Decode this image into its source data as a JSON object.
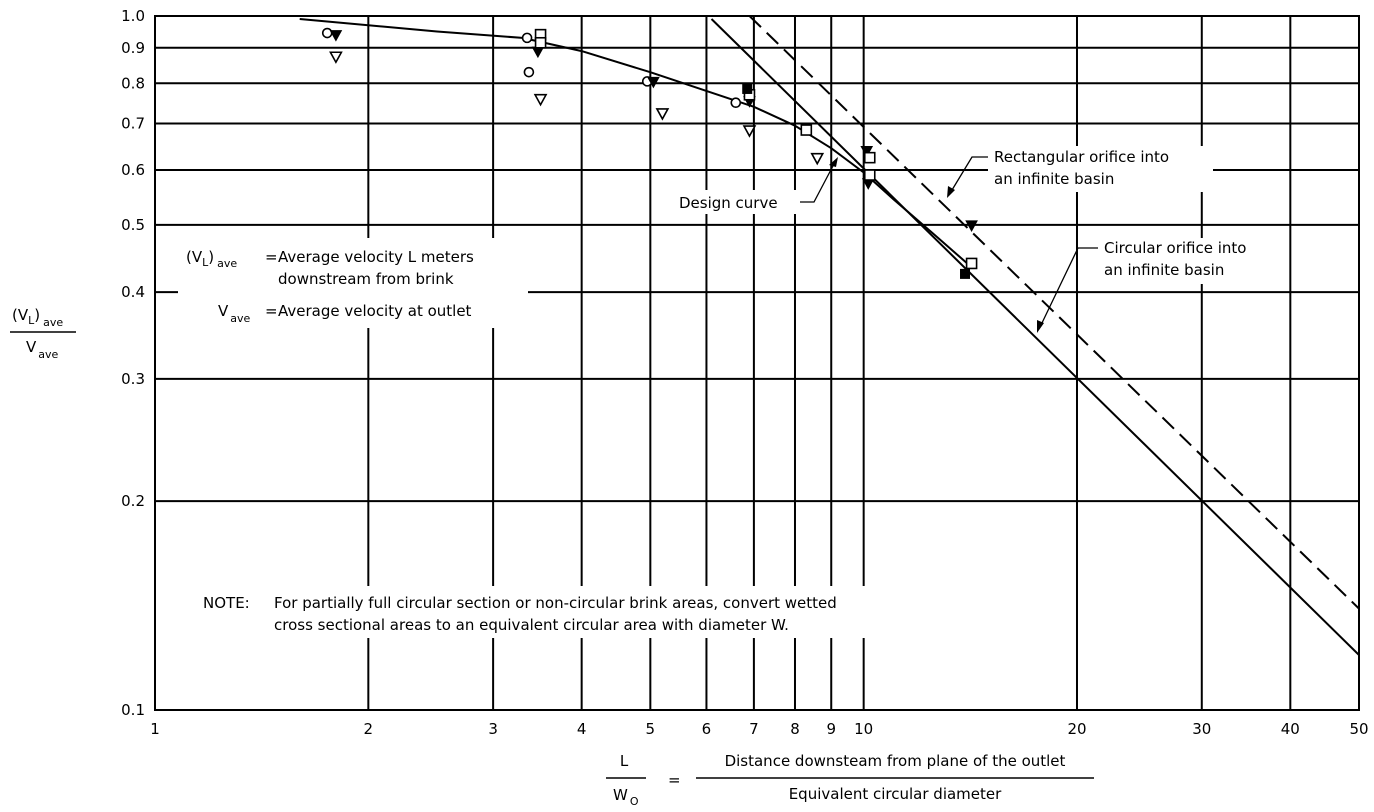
{
  "chart_data": {
    "type": "scatter",
    "xscale": "log",
    "yscale": "log",
    "xlim": [
      1,
      50
    ],
    "ylim": [
      0.1,
      1.0
    ],
    "grid": true,
    "x_ticks": [
      1,
      2,
      3,
      4,
      5,
      6,
      7,
      8,
      9,
      10,
      20,
      30,
      40,
      50
    ],
    "y_ticks": [
      0.1,
      0.2,
      0.3,
      0.4,
      0.5,
      0.6,
      0.7,
      0.8,
      0.9,
      1.0
    ],
    "y_ticks_labels": [
      "0.1",
      "0.2",
      "0.3",
      "0.4",
      "0.5",
      "0.6",
      "0.7",
      "0.8",
      "0.9",
      "1.0"
    ],
    "ylabel": {
      "num_main": "(V",
      "num_sub_L": "L",
      "num_close": ")",
      "num_sub": "ave",
      "den_main": "V",
      "den_sub": "ave"
    },
    "xlabel": {
      "num": "L",
      "den_main": "W",
      "den_sub": "O",
      "equals": "=",
      "rhs_num": "Distance downsteam from plane of the outlet",
      "rhs_den": "Equivalent circular diameter"
    },
    "legend_defs": {
      "def1_main": "(V",
      "def1_sub_L": "L",
      "def1_close": ")",
      "def1_sub": "ave",
      "def1_eq": "=",
      "def1_text1": "Average velocity L meters",
      "def1_text2": "downstream from brink",
      "def2_main": "V",
      "def2_sub": "ave",
      "def2_eq": "=",
      "def2_text": "Average velocity at outlet"
    },
    "note": {
      "label": "NOTE:",
      "line1": "For partially full circular section or non-circular brink areas, convert wetted",
      "line2": "cross sectional areas to an equivalent circular area with diameter W."
    },
    "annotations": {
      "design_curve": "Design curve",
      "rect_line1": "Rectangular orifice into",
      "rect_line2": "an infinite basin",
      "circ_line1": "Circular orifice into",
      "circ_line2": "an infinite basin"
    },
    "series": [
      {
        "style": "design",
        "x": [
          1.6,
          2.5,
          3.3,
          4.0,
          5.0,
          6.0,
          7.0,
          8.0,
          9.0,
          10.0,
          11.0,
          12.5,
          14.0
        ],
        "y": [
          0.99,
          0.95,
          0.93,
          0.89,
          0.83,
          0.78,
          0.74,
          0.695,
          0.645,
          0.595,
          0.545,
          0.487,
          0.44
        ]
      },
      {
        "style": "circular",
        "x": [
          6.1,
          50
        ],
        "y": [
          0.99,
          0.12
        ]
      },
      {
        "style": "rectangular",
        "x": [
          6.9,
          50
        ],
        "y": [
          1.0,
          0.14
        ]
      },
      {
        "style": "open-circle",
        "x": [
          1.75,
          3.35,
          3.37,
          4.95,
          6.6
        ],
        "y": [
          0.945,
          0.93,
          0.83,
          0.805,
          0.75
        ]
      },
      {
        "style": "filled-triangle",
        "x": [
          1.8,
          3.47,
          5.05,
          6.9,
          10.1,
          10.15,
          14.2
        ],
        "y": [
          0.94,
          0.89,
          0.805,
          0.755,
          0.64,
          0.575,
          0.5
        ]
      },
      {
        "style": "open-triangle",
        "x": [
          1.8,
          3.5,
          5.2,
          6.9,
          8.6
        ],
        "y": [
          0.875,
          0.76,
          0.725,
          0.685,
          0.625
        ]
      },
      {
        "style": "open-square",
        "x": [
          3.5,
          3.5,
          6.9,
          8.3,
          10.2,
          10.2,
          14.2
        ],
        "y": [
          0.94,
          0.915,
          0.77,
          0.685,
          0.625,
          0.59,
          0.44
        ]
      },
      {
        "style": "filled-square",
        "x": [
          6.85,
          13.9
        ],
        "y": [
          0.785,
          0.425
        ]
      }
    ]
  }
}
